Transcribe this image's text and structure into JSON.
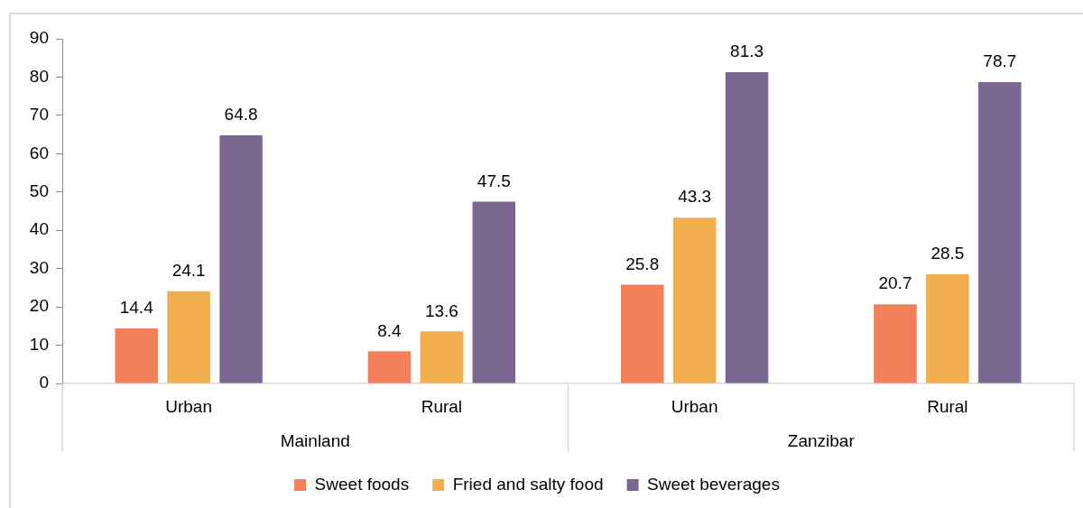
{
  "chart_data": {
    "type": "bar",
    "categories": [
      "Urban",
      "Rural",
      "Urban",
      "Rural"
    ],
    "series": [
      {
        "name": "Sweet foods",
        "color": "#f4805a",
        "values": [
          14.4,
          8.4,
          25.8,
          20.7
        ]
      },
      {
        "name": "Fried and salty food",
        "color": "#f0ae4f",
        "values": [
          24.1,
          13.6,
          43.3,
          28.5
        ]
      },
      {
        "name": "Sweet beverages",
        "color": "#7b6891",
        "values": [
          64.8,
          47.5,
          81.3,
          78.7
        ]
      }
    ],
    "annotations": [
      "Mainland",
      "Zanzibar"
    ],
    "ylim": [
      0,
      90
    ],
    "yticks": [
      0,
      10,
      20,
      30,
      40,
      50,
      60,
      70,
      80,
      90
    ],
    "data_labels": true,
    "legend": "bottom"
  }
}
